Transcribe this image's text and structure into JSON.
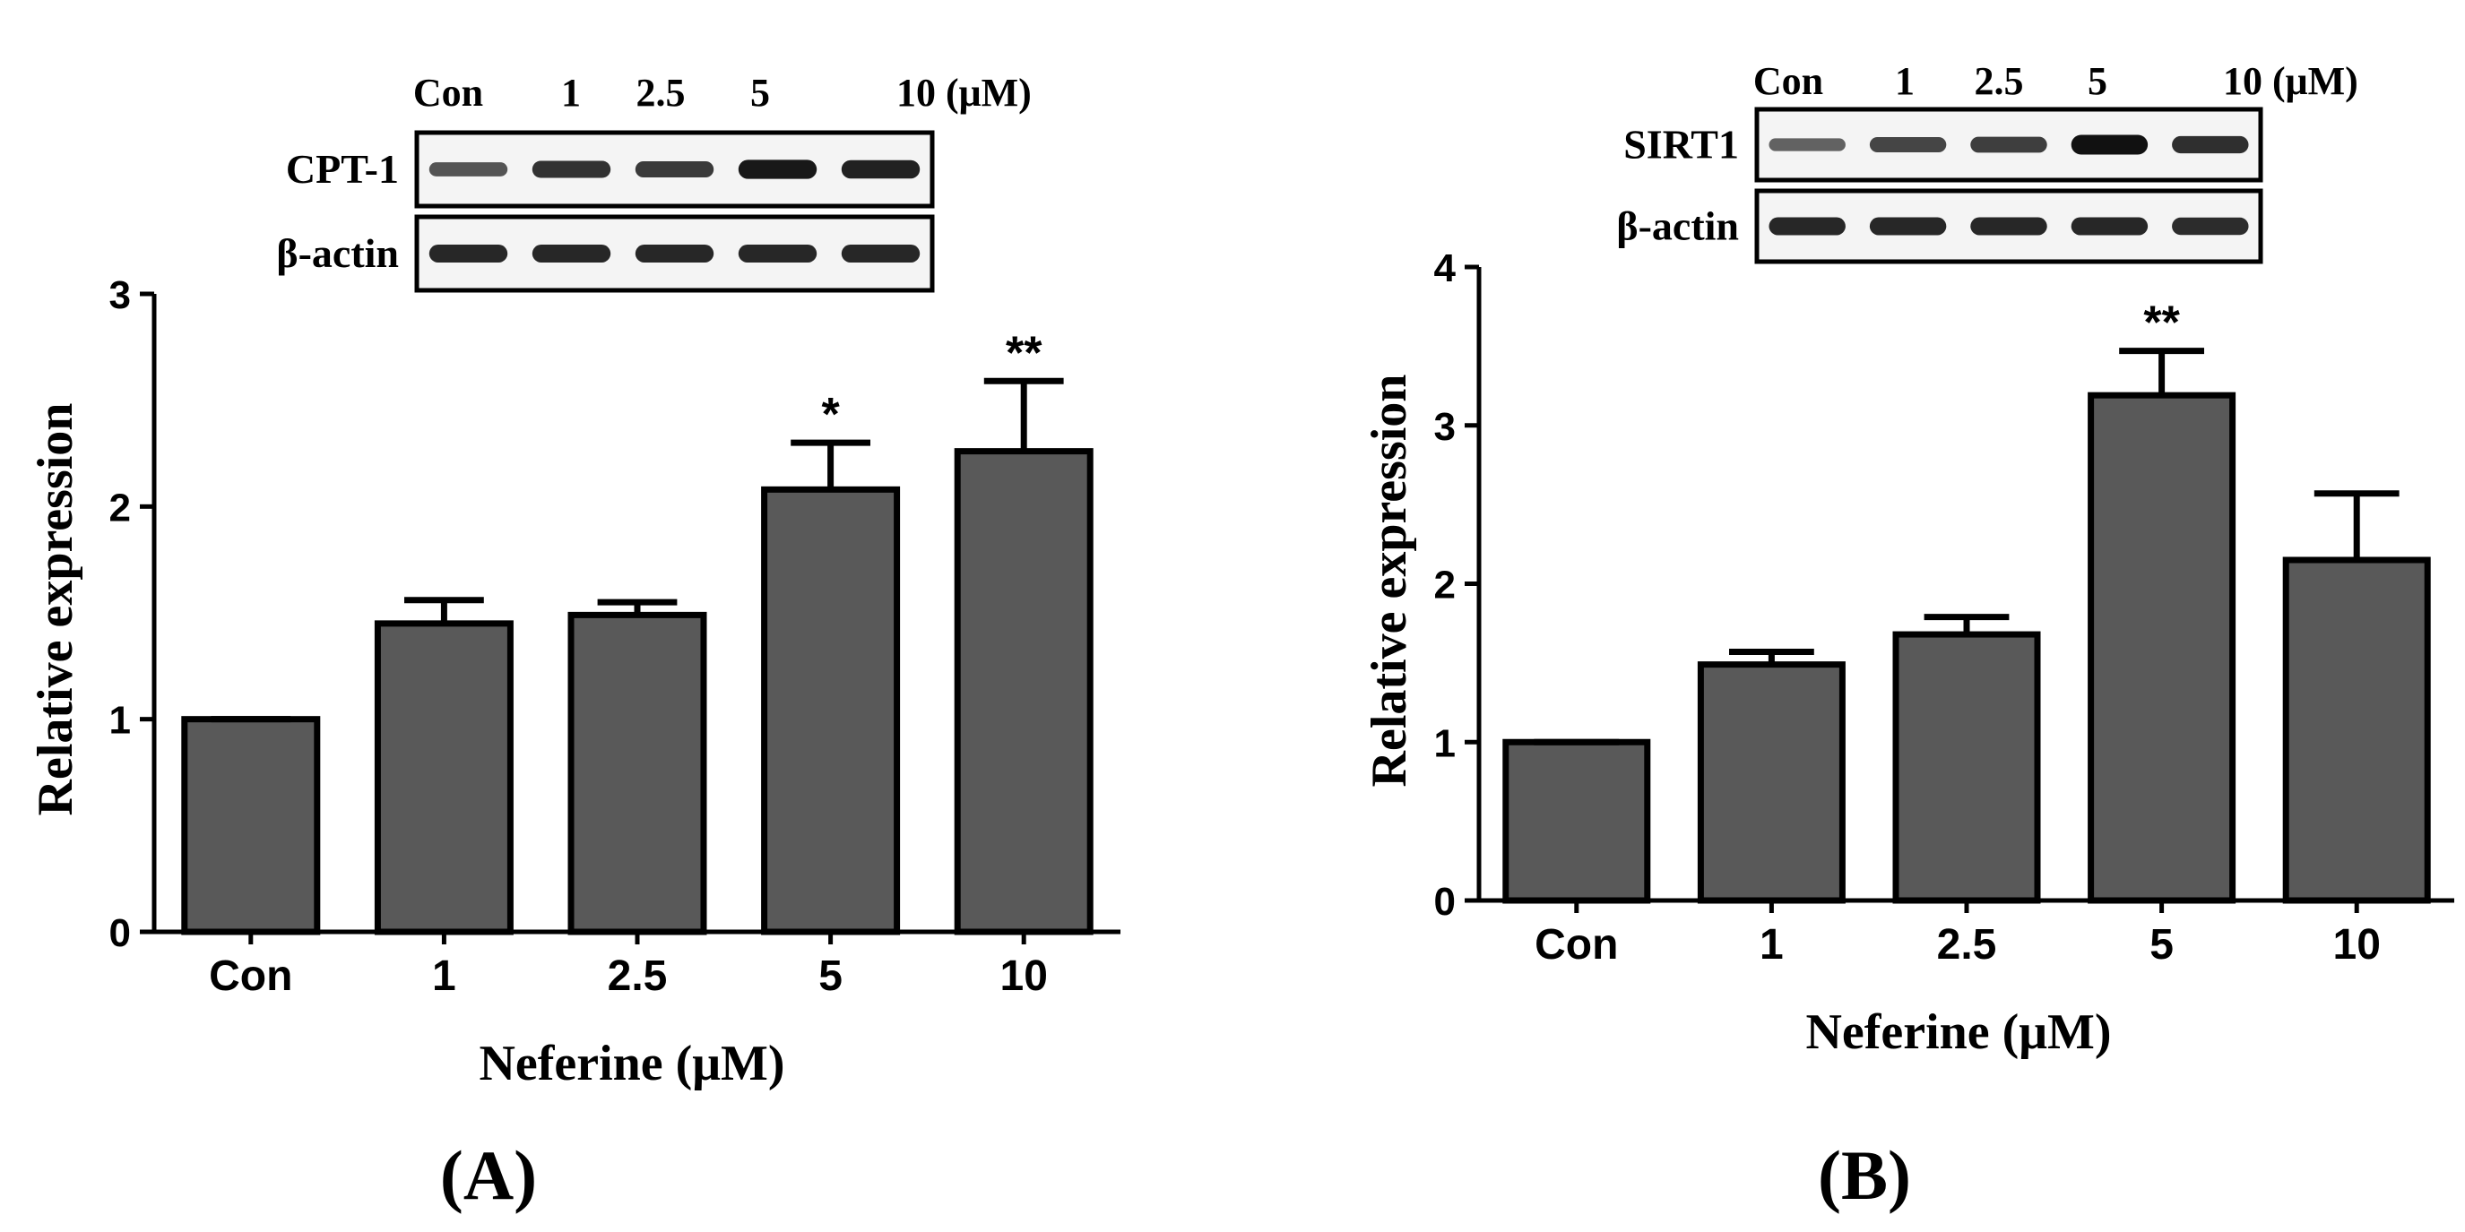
{
  "colors": {
    "bar": "#595959",
    "stroke": "#000000",
    "band": "#111111",
    "blot_bg": "#f4f4f4"
  },
  "chart_data": [
    {
      "type": "bar",
      "panel": "A",
      "panel_label": "(A)",
      "xlabel": "Neferine (μM)",
      "ylabel": "Relative expression",
      "ylim": [
        0,
        3
      ],
      "yticks": [
        0,
        1,
        2,
        3
      ],
      "ytick_labels": [
        "0",
        "1",
        "2",
        "3"
      ],
      "categories": [
        "Con",
        "1",
        "2.5",
        "5",
        "10"
      ],
      "values": [
        1.0,
        1.45,
        1.49,
        2.08,
        2.26
      ],
      "errors": [
        0.01,
        0.11,
        0.06,
        0.22,
        0.33
      ],
      "significance": [
        "",
        "",
        "",
        "*",
        "**"
      ],
      "blot": {
        "lanes": [
          "Con",
          "1",
          "2.5",
          "5",
          "10 (μM)"
        ],
        "rows": [
          {
            "label": "CPT-1",
            "intensities": [
              0.55,
              0.78,
              0.72,
              0.95,
              0.9
            ]
          },
          {
            "label": "β-actin",
            "intensities": [
              0.85,
              0.85,
              0.85,
              0.85,
              0.85
            ]
          }
        ]
      }
    },
    {
      "type": "bar",
      "panel": "B",
      "panel_label": "(B)",
      "xlabel": "Neferine (μM)",
      "ylabel": "Relative expression",
      "ylim": [
        0,
        4
      ],
      "yticks": [
        0,
        1,
        2,
        3,
        4
      ],
      "ytick_labels": [
        "0",
        "1",
        "2",
        "3",
        "4"
      ],
      "categories": [
        "Con",
        "1",
        "2.5",
        "5",
        "10"
      ],
      "values": [
        1.0,
        1.49,
        1.68,
        3.19,
        2.15
      ],
      "errors": [
        0.01,
        0.08,
        0.11,
        0.28,
        0.42
      ],
      "significance": [
        "",
        "",
        "",
        "**",
        ""
      ],
      "blot": {
        "lanes": [
          "Con",
          "1",
          "2.5",
          "5",
          "10 (μM)"
        ],
        "rows": [
          {
            "label": "SIRT1",
            "intensities": [
              0.45,
              0.65,
              0.7,
              1.0,
              0.8
            ]
          },
          {
            "label": "β-actin",
            "intensities": [
              0.85,
              0.85,
              0.85,
              0.85,
              0.82
            ]
          }
        ]
      }
    }
  ]
}
